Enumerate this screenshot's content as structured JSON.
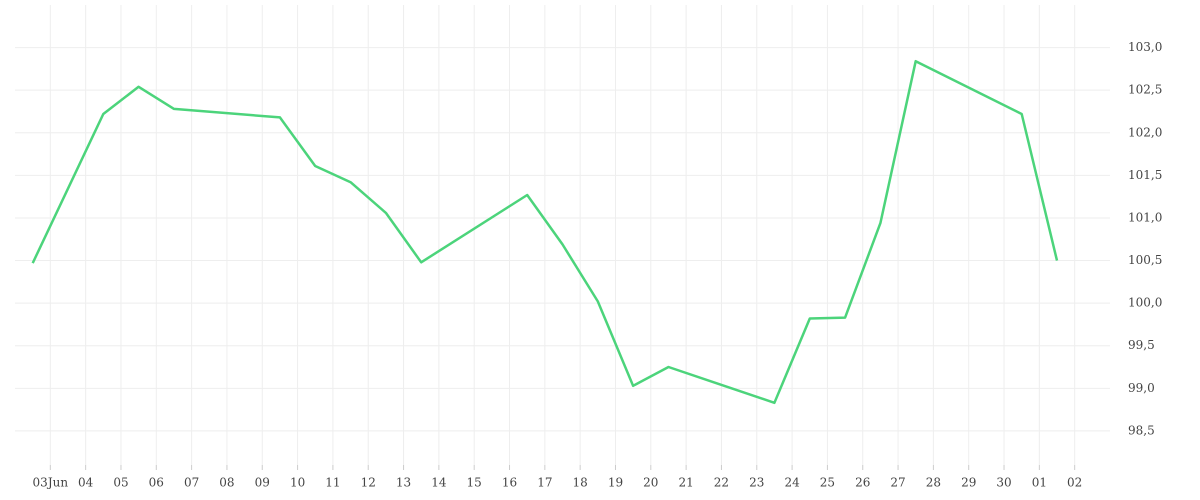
{
  "chart_data": {
    "type": "line",
    "x": [
      -0.5,
      1.5,
      2.5,
      3.5,
      6.5,
      7.5,
      8.5,
      9.5,
      10.5,
      13.5,
      14.5,
      15.5,
      16.5,
      17.5,
      20.5,
      21.5,
      22.5,
      23.5,
      24.5,
      27.5,
      28.5
    ],
    "series": [
      {
        "color": "#4cd47b",
        "values": [
          100.47,
          102.22,
          102.54,
          102.28,
          102.18,
          101.61,
          101.42,
          101.06,
          100.48,
          101.27,
          100.69,
          100.02,
          99.03,
          99.25,
          98.83,
          99.82,
          99.83,
          100.94,
          102.84,
          102.22,
          100.5
        ]
      }
    ],
    "xlim": [
      -1,
      30
    ],
    "xticks": [
      {
        "value": 0,
        "label": "03Jun"
      },
      {
        "value": 1,
        "label": "04"
      },
      {
        "value": 2,
        "label": "05"
      },
      {
        "value": 3,
        "label": "06"
      },
      {
        "value": 4,
        "label": "07"
      },
      {
        "value": 5,
        "label": "08"
      },
      {
        "value": 6,
        "label": "09"
      },
      {
        "value": 7,
        "label": "10"
      },
      {
        "value": 8,
        "label": "11"
      },
      {
        "value": 9,
        "label": "12"
      },
      {
        "value": 10,
        "label": "13"
      },
      {
        "value": 11,
        "label": "14"
      },
      {
        "value": 12,
        "label": "15"
      },
      {
        "value": 13,
        "label": "16"
      },
      {
        "value": 14,
        "label": "17"
      },
      {
        "value": 15,
        "label": "18"
      },
      {
        "value": 16,
        "label": "19"
      },
      {
        "value": 17,
        "label": "20"
      },
      {
        "value": 18,
        "label": "21"
      },
      {
        "value": 19,
        "label": "22"
      },
      {
        "value": 20,
        "label": "23"
      },
      {
        "value": 21,
        "label": "24"
      },
      {
        "value": 22,
        "label": "25"
      },
      {
        "value": 23,
        "label": "26"
      },
      {
        "value": 24,
        "label": "27"
      },
      {
        "value": 25,
        "label": "28"
      },
      {
        "value": 26,
        "label": "29"
      },
      {
        "value": 27,
        "label": "30"
      },
      {
        "value": 28,
        "label": "01"
      },
      {
        "value": 29,
        "label": "02"
      }
    ],
    "ylim": [
      98.1,
      103.5
    ],
    "yticks": [
      {
        "value": 98.5,
        "label": "98,5"
      },
      {
        "value": 99,
        "label": "99,0"
      },
      {
        "value": 99.5,
        "label": "99,5"
      },
      {
        "value": 100,
        "label": "100,0"
      },
      {
        "value": 100.5,
        "label": "100,5"
      },
      {
        "value": 101,
        "label": "101,0"
      },
      {
        "value": 101.5,
        "label": "101,5"
      },
      {
        "value": 102,
        "label": "102,0"
      },
      {
        "value": 102.5,
        "label": "102,5"
      },
      {
        "value": 103,
        "label": "103,0"
      }
    ],
    "grid": true
  }
}
